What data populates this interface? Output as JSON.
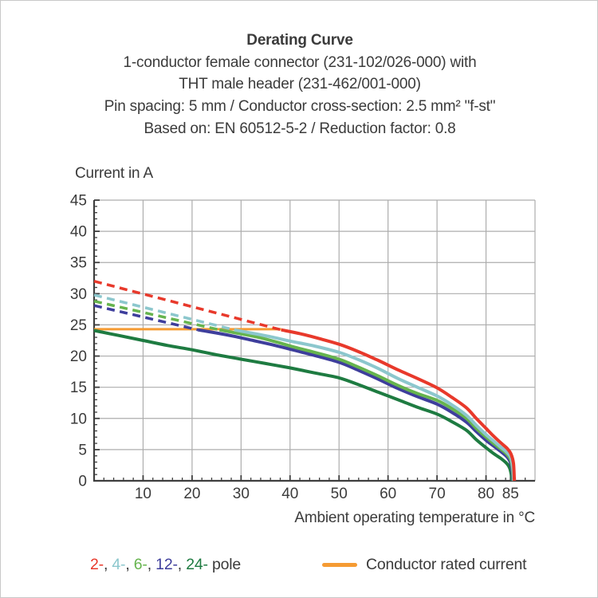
{
  "header": {
    "title": "Derating Curve",
    "subtitle_lines": [
      "1-conductor female connector (231-102/026-000) with",
      "THT male header (231-462/001-000)",
      "Pin spacing: 5 mm / Conductor cross-section: 2.5 mm² \"f-st\"",
      "Based on: EN 60512-5-2 / Reduction factor: 0.8"
    ]
  },
  "colors": {
    "text": "#3b3b3b",
    "grid": "#adadad",
    "axis": "#3f3f3f",
    "red_2pole": "#e8392b",
    "cyan_4pole": "#8cc7cd",
    "green_6pole": "#66b44e",
    "indigo_12pole": "#3e3e9c",
    "darkgreen_24pole": "#1e7b41",
    "orange_rated": "#f59b33"
  },
  "chart_data": {
    "type": "line",
    "title": "Derating Curve",
    "xlabel": "Ambient operating temperature in °C",
    "ylabel": "Current in A",
    "xlim": [
      0,
      90
    ],
    "ylim": [
      0,
      45
    ],
    "grid": "on",
    "x_gridlines": [
      10,
      20,
      30,
      40,
      50,
      60,
      70,
      80
    ],
    "y_gridlines": [
      5,
      10,
      15,
      20,
      25,
      30,
      35,
      40
    ],
    "x_major_ticks": [
      10,
      20,
      30,
      40,
      50,
      60,
      70,
      80,
      85
    ],
    "x_tick_labels": [
      "10",
      "20",
      "30",
      "40",
      "50",
      "60",
      "70",
      "80",
      "85"
    ],
    "x_minor_tick_step": 2,
    "y_major_ticks": [
      0,
      5,
      10,
      15,
      20,
      25,
      30,
      35,
      40,
      45
    ],
    "y_tick_labels": [
      "0",
      "5",
      "10",
      "15",
      "20",
      "25",
      "30",
      "35",
      "40",
      "45"
    ],
    "y_minor_tick_step": 1,
    "rated_current": {
      "label": "Conductor rated current",
      "value_A": 24.3,
      "x_start": 0,
      "x_end": 38.2,
      "color_key": "orange_rated"
    },
    "series": [
      {
        "name": "24-pole",
        "color_key": "darkgreen_24pole",
        "dashed": [],
        "solid": [
          [
            0,
            24.1
          ],
          [
            5,
            23.3
          ],
          [
            10,
            22.5
          ],
          [
            15,
            21.7
          ],
          [
            20,
            21.0
          ],
          [
            25,
            20.2
          ],
          [
            30,
            19.5
          ],
          [
            35,
            18.8
          ],
          [
            40,
            18.1
          ],
          [
            45,
            17.3
          ],
          [
            50,
            16.5
          ],
          [
            54,
            15.4
          ],
          [
            58,
            14.2
          ],
          [
            62,
            13.0
          ],
          [
            66,
            11.8
          ],
          [
            70,
            10.7
          ],
          [
            73,
            9.5
          ],
          [
            76,
            8.1
          ],
          [
            78,
            6.6
          ],
          [
            80,
            5.3
          ],
          [
            81.5,
            4.4
          ],
          [
            83,
            3.6
          ],
          [
            84.2,
            2.8
          ],
          [
            84.8,
            2.1
          ],
          [
            85.15,
            1.0
          ],
          [
            85.3,
            0
          ]
        ]
      },
      {
        "name": "12-pole",
        "color_key": "indigo_12pole",
        "dashed": [
          [
            0,
            28.1
          ],
          [
            21.2,
            24.2
          ]
        ],
        "solid": [
          [
            21.2,
            24.2
          ],
          [
            25,
            23.7
          ],
          [
            29,
            23.1
          ],
          [
            33,
            22.4
          ],
          [
            37,
            21.7
          ],
          [
            41,
            20.9
          ],
          [
            45,
            20.1
          ],
          [
            50,
            19.0
          ],
          [
            54,
            17.7
          ],
          [
            58,
            16.3
          ],
          [
            62,
            14.8
          ],
          [
            66,
            13.5
          ],
          [
            70,
            12.3
          ],
          [
            73,
            11.0
          ],
          [
            76,
            9.4
          ],
          [
            78,
            7.9
          ],
          [
            80,
            6.5
          ],
          [
            81.5,
            5.6
          ],
          [
            83,
            4.7
          ],
          [
            84.2,
            3.9
          ],
          [
            84.9,
            3.1
          ],
          [
            85.3,
            1.6
          ],
          [
            85.45,
            0
          ]
        ]
      },
      {
        "name": "6-pole",
        "color_key": "green_6pole",
        "dashed": [
          [
            0,
            28.8
          ],
          [
            25.6,
            24.2
          ]
        ],
        "solid": [
          [
            25.6,
            24.2
          ],
          [
            29,
            23.7
          ],
          [
            33,
            23.1
          ],
          [
            37,
            22.3
          ],
          [
            41,
            21.4
          ],
          [
            45,
            20.6
          ],
          [
            50,
            19.5
          ],
          [
            54,
            18.2
          ],
          [
            58,
            16.8
          ],
          [
            62,
            15.3
          ],
          [
            66,
            14.0
          ],
          [
            70,
            12.9
          ],
          [
            73,
            11.6
          ],
          [
            76,
            10.0
          ],
          [
            78,
            8.4
          ],
          [
            80,
            7.0
          ],
          [
            81.5,
            6.0
          ],
          [
            83,
            5.1
          ],
          [
            84.2,
            4.3
          ],
          [
            85,
            3.4
          ],
          [
            85.4,
            1.9
          ],
          [
            85.55,
            0
          ]
        ]
      },
      {
        "name": "4-pole",
        "color_key": "cyan_4pole",
        "dashed": [
          [
            0,
            29.8
          ],
          [
            28.6,
            24.2
          ]
        ],
        "solid": [
          [
            28.6,
            24.2
          ],
          [
            32,
            23.7
          ],
          [
            36,
            23.1
          ],
          [
            40,
            22.4
          ],
          [
            45,
            21.6
          ],
          [
            50,
            20.6
          ],
          [
            54,
            19.4
          ],
          [
            58,
            18.0
          ],
          [
            62,
            16.4
          ],
          [
            66,
            15.0
          ],
          [
            70,
            13.6
          ],
          [
            73,
            12.2
          ],
          [
            76,
            10.5
          ],
          [
            78,
            8.9
          ],
          [
            80,
            7.4
          ],
          [
            81.5,
            6.4
          ],
          [
            83,
            5.4
          ],
          [
            84.2,
            4.6
          ],
          [
            85,
            3.8
          ],
          [
            85.45,
            2.2
          ],
          [
            85.65,
            0
          ]
        ]
      },
      {
        "name": "2-pole",
        "color_key": "red_2pole",
        "dashed": [
          [
            0,
            32
          ],
          [
            38.2,
            24.2
          ]
        ],
        "solid": [
          [
            38.2,
            24.2
          ],
          [
            42,
            23.6
          ],
          [
            46,
            22.8
          ],
          [
            50,
            21.9
          ],
          [
            54,
            20.7
          ],
          [
            58,
            19.3
          ],
          [
            62,
            17.8
          ],
          [
            66,
            16.4
          ],
          [
            70,
            14.9
          ],
          [
            73,
            13.4
          ],
          [
            76,
            11.7
          ],
          [
            78,
            10.0
          ],
          [
            80,
            8.4
          ],
          [
            81.5,
            7.2
          ],
          [
            83,
            6.1
          ],
          [
            84.3,
            5.2
          ],
          [
            85.1,
            4.3
          ],
          [
            85.6,
            2.8
          ],
          [
            85.78,
            0
          ]
        ]
      }
    ]
  },
  "legend": {
    "pole_entries": [
      {
        "label": "2-",
        "color_key": "red_2pole"
      },
      {
        "label": "4-",
        "color_key": "cyan_4pole"
      },
      {
        "label": "6-",
        "color_key": "green_6pole"
      },
      {
        "label": "12-",
        "color_key": "indigo_12pole"
      },
      {
        "label": "24-",
        "color_key": "darkgreen_24pole"
      }
    ],
    "separator": ", ",
    "suffix": " pole",
    "rated_label": "Conductor rated current"
  }
}
